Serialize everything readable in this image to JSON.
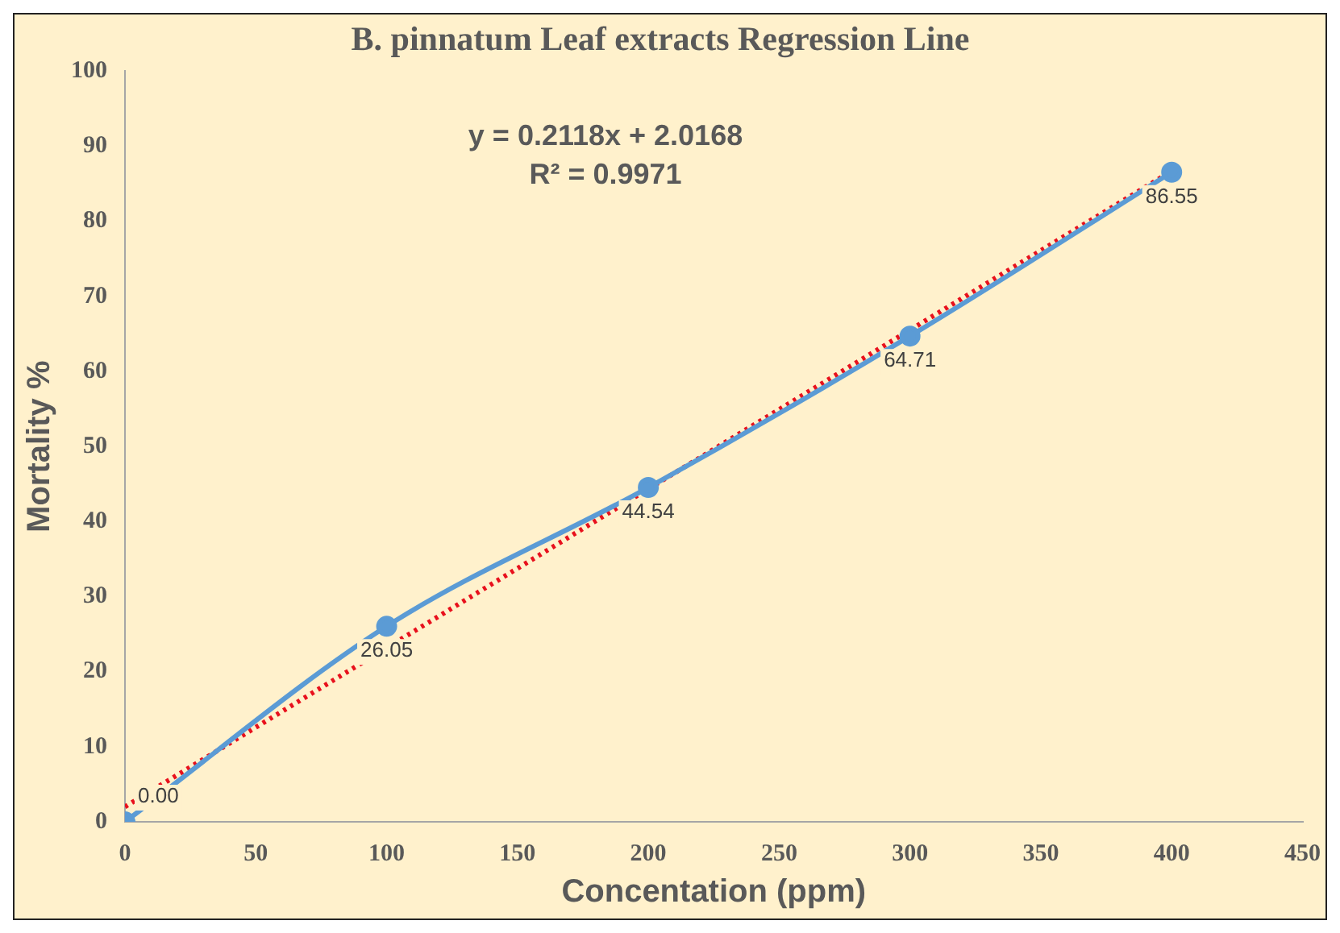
{
  "chart_data": {
    "type": "line",
    "title": "B. pinnatum Leaf extracts Regression Line",
    "xlabel": "Concentation (ppm)",
    "ylabel": "Mortality %",
    "x": [
      0,
      100,
      200,
      300,
      400
    ],
    "series": [
      {
        "type": "line",
        "color": "#5b9bd5",
        "values": [
          0,
          26.05,
          44.54,
          64.71,
          86.55
        ],
        "marker": "circle",
        "value_labels": [
          "0.00",
          "26.05",
          "44.54",
          "64.71",
          "86.55"
        ]
      },
      {
        "type": "line",
        "color": "#e8101c",
        "x": [
          0,
          400
        ],
        "values": [
          2.0,
          86.7
        ],
        "marker": "none",
        "line_style": "dotted"
      }
    ],
    "annotations": [
      "y = 0.2118x + 2.0168",
      "R² = 0.9971"
    ],
    "xlim": [
      0,
      450
    ],
    "xticks": [
      0,
      50,
      100,
      150,
      200,
      250,
      300,
      350,
      400,
      450
    ],
    "ylim": [
      0,
      100
    ],
    "yticks": [
      0,
      10,
      20,
      30,
      40,
      50,
      60,
      70,
      80,
      90,
      100
    ],
    "grid": false,
    "legend": false
  }
}
